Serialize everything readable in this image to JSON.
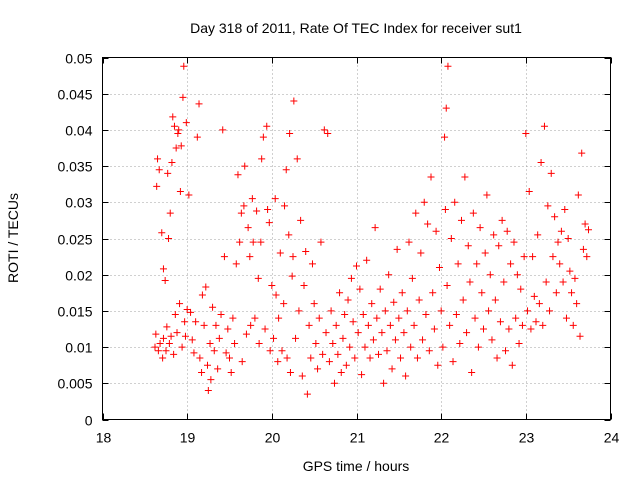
{
  "chart_data": {
    "type": "scatter",
    "title": "Day 318 of 2011, Rate Of TEC Index for receiver sut1",
    "xlabel": "GPS time / hours",
    "ylabel": "ROTI / TECUs",
    "xlim": [
      18,
      24
    ],
    "ylim": [
      0,
      0.05
    ],
    "xticks": [
      "18",
      "19",
      "20",
      "21",
      "22",
      "23",
      "24"
    ],
    "yticks": [
      "0",
      "0.005",
      "0.01",
      "0.015",
      "0.02",
      "0.025",
      "0.03",
      "0.035",
      "0.04",
      "0.045",
      "0.05"
    ],
    "grid": true,
    "marker": "+",
    "series": [
      {
        "name": "sut1",
        "color": "#ff0000",
        "points": [
          [
            18.62,
            0.01
          ],
          [
            18.63,
            0.0118
          ],
          [
            18.64,
            0.0322
          ],
          [
            18.65,
            0.036
          ],
          [
            18.66,
            0.0095
          ],
          [
            18.67,
            0.0345
          ],
          [
            18.68,
            0.0105
          ],
          [
            18.7,
            0.0258
          ],
          [
            18.71,
            0.0085
          ],
          [
            18.72,
            0.0208
          ],
          [
            18.72,
            0.0112
          ],
          [
            18.74,
            0.0192
          ],
          [
            18.75,
            0.0095
          ],
          [
            18.76,
            0.0128
          ],
          [
            18.77,
            0.034
          ],
          [
            18.78,
            0.025
          ],
          [
            18.79,
            0.0105
          ],
          [
            18.8,
            0.0285
          ],
          [
            18.81,
            0.0115
          ],
          [
            18.82,
            0.0355
          ],
          [
            18.83,
            0.0418
          ],
          [
            18.84,
            0.009
          ],
          [
            18.85,
            0.0405
          ],
          [
            18.86,
            0.0145
          ],
          [
            18.87,
            0.0375
          ],
          [
            18.88,
            0.012
          ],
          [
            18.89,
            0.0395
          ],
          [
            18.9,
            0.04
          ],
          [
            18.91,
            0.016
          ],
          [
            18.92,
            0.0315
          ],
          [
            18.93,
            0.0378
          ],
          [
            18.94,
            0.01
          ],
          [
            18.95,
            0.0445
          ],
          [
            18.96,
            0.0488
          ],
          [
            18.97,
            0.0135
          ],
          [
            18.98,
            0.0115
          ],
          [
            18.99,
            0.041
          ],
          [
            19.0,
            0.0152
          ],
          [
            19.02,
            0.031
          ],
          [
            19.04,
            0.0148
          ],
          [
            19.06,
            0.011
          ],
          [
            19.08,
            0.0092
          ],
          [
            19.1,
            0.0135
          ],
          [
            19.12,
            0.039
          ],
          [
            19.14,
            0.0436
          ],
          [
            19.15,
            0.0085
          ],
          [
            19.17,
            0.0065
          ],
          [
            19.18,
            0.0172
          ],
          [
            19.2,
            0.013
          ],
          [
            19.22,
            0.0183
          ],
          [
            19.24,
            0.0075
          ],
          [
            19.25,
            0.004
          ],
          [
            19.27,
            0.0105
          ],
          [
            19.28,
            0.0055
          ],
          [
            19.3,
            0.0155
          ],
          [
            19.32,
            0.0095
          ],
          [
            19.34,
            0.013
          ],
          [
            19.36,
            0.007
          ],
          [
            19.38,
            0.0112
          ],
          [
            19.4,
            0.0145
          ],
          [
            19.42,
            0.04
          ],
          [
            19.44,
            0.0225
          ],
          [
            19.46,
            0.0092
          ],
          [
            19.48,
            0.0125
          ],
          [
            19.5,
            0.0085
          ],
          [
            19.52,
            0.0065
          ],
          [
            19.54,
            0.014
          ],
          [
            19.56,
            0.0105
          ],
          [
            19.58,
            0.0215
          ],
          [
            19.6,
            0.0338
          ],
          [
            19.62,
            0.0245
          ],
          [
            19.64,
            0.0285
          ],
          [
            19.65,
            0.008
          ],
          [
            19.67,
            0.0295
          ],
          [
            19.68,
            0.035
          ],
          [
            19.7,
            0.0118
          ],
          [
            19.72,
            0.0265
          ],
          [
            19.74,
            0.0225
          ],
          [
            19.75,
            0.013
          ],
          [
            19.77,
            0.0305
          ],
          [
            19.78,
            0.0245
          ],
          [
            19.8,
            0.014
          ],
          [
            19.82,
            0.0288
          ],
          [
            19.84,
            0.0195
          ],
          [
            19.85,
            0.0105
          ],
          [
            19.87,
            0.0245
          ],
          [
            19.88,
            0.036
          ],
          [
            19.9,
            0.039
          ],
          [
            19.92,
            0.0125
          ],
          [
            19.94,
            0.0405
          ],
          [
            19.95,
            0.029
          ],
          [
            19.97,
            0.0272
          ],
          [
            19.98,
            0.0095
          ],
          [
            20.0,
            0.0185
          ],
          [
            20.02,
            0.0112
          ],
          [
            20.04,
            0.0305
          ],
          [
            20.05,
            0.0172
          ],
          [
            20.07,
            0.008
          ],
          [
            20.08,
            0.014
          ],
          [
            20.1,
            0.023
          ],
          [
            20.12,
            0.0095
          ],
          [
            20.14,
            0.016
          ],
          [
            20.15,
            0.0295
          ],
          [
            20.17,
            0.0345
          ],
          [
            20.18,
            0.0085
          ],
          [
            20.2,
            0.0255
          ],
          [
            20.21,
            0.0395
          ],
          [
            20.22,
            0.0065
          ],
          [
            20.24,
            0.0198
          ],
          [
            20.25,
            0.0225
          ],
          [
            20.26,
            0.044
          ],
          [
            20.28,
            0.0112
          ],
          [
            20.3,
            0.036
          ],
          [
            20.32,
            0.015
          ],
          [
            20.34,
            0.0275
          ],
          [
            20.36,
            0.006
          ],
          [
            20.38,
            0.0185
          ],
          [
            20.4,
            0.0232
          ],
          [
            20.42,
            0.0035
          ],
          [
            20.44,
            0.013
          ],
          [
            20.46,
            0.0085
          ],
          [
            20.48,
            0.0215
          ],
          [
            20.5,
            0.016
          ],
          [
            20.52,
            0.0105
          ],
          [
            20.54,
            0.007
          ],
          [
            20.56,
            0.014
          ],
          [
            20.58,
            0.0245
          ],
          [
            20.6,
            0.009
          ],
          [
            20.62,
            0.04
          ],
          [
            20.64,
            0.012
          ],
          [
            20.66,
            0.0395
          ],
          [
            20.68,
            0.008
          ],
          [
            20.7,
            0.015
          ],
          [
            20.72,
            0.0105
          ],
          [
            20.74,
            0.005
          ],
          [
            20.76,
            0.013
          ],
          [
            20.78,
            0.009
          ],
          [
            20.8,
            0.0175
          ],
          [
            20.82,
            0.0065
          ],
          [
            20.84,
            0.0112
          ],
          [
            20.86,
            0.0145
          ],
          [
            20.88,
            0.0075
          ],
          [
            20.9,
            0.0165
          ],
          [
            20.92,
            0.01
          ],
          [
            20.94,
            0.0195
          ],
          [
            20.96,
            0.0135
          ],
          [
            20.98,
            0.0085
          ],
          [
            21.0,
            0.0212
          ],
          [
            21.02,
            0.012
          ],
          [
            21.04,
            0.018
          ],
          [
            21.06,
            0.0062
          ],
          [
            21.08,
            0.0145
          ],
          [
            21.1,
            0.01
          ],
          [
            21.12,
            0.022
          ],
          [
            21.14,
            0.013
          ],
          [
            21.16,
            0.0085
          ],
          [
            21.18,
            0.016
          ],
          [
            21.2,
            0.011
          ],
          [
            21.22,
            0.0265
          ],
          [
            21.24,
            0.014
          ],
          [
            21.26,
            0.009
          ],
          [
            21.28,
            0.018
          ],
          [
            21.3,
            0.012
          ],
          [
            21.32,
            0.005
          ],
          [
            21.34,
            0.015
          ],
          [
            21.36,
            0.0095
          ],
          [
            21.38,
            0.02
          ],
          [
            21.4,
            0.013
          ],
          [
            21.42,
            0.007
          ],
          [
            21.44,
            0.0162
          ],
          [
            21.46,
            0.011
          ],
          [
            21.48,
            0.0235
          ],
          [
            21.5,
            0.014
          ],
          [
            21.52,
            0.0085
          ],
          [
            21.54,
            0.0175
          ],
          [
            21.56,
            0.012
          ],
          [
            21.58,
            0.006
          ],
          [
            21.6,
            0.015
          ],
          [
            21.62,
            0.0245
          ],
          [
            21.64,
            0.01
          ],
          [
            21.66,
            0.0195
          ],
          [
            21.68,
            0.013
          ],
          [
            21.7,
            0.0285
          ],
          [
            21.72,
            0.0085
          ],
          [
            21.74,
            0.0165
          ],
          [
            21.76,
            0.023
          ],
          [
            21.78,
            0.011
          ],
          [
            21.8,
            0.03
          ],
          [
            21.82,
            0.0145
          ],
          [
            21.84,
            0.027
          ],
          [
            21.86,
            0.0095
          ],
          [
            21.88,
            0.0335
          ],
          [
            21.9,
            0.0175
          ],
          [
            21.92,
            0.0125
          ],
          [
            21.94,
            0.026
          ],
          [
            21.96,
            0.0075
          ],
          [
            21.98,
            0.021
          ],
          [
            22.0,
            0.015
          ],
          [
            22.02,
            0.01
          ],
          [
            22.04,
            0.039
          ],
          [
            22.05,
            0.029
          ],
          [
            22.06,
            0.043
          ],
          [
            22.07,
            0.0185
          ],
          [
            22.08,
            0.0488
          ],
          [
            22.1,
            0.013
          ],
          [
            22.12,
            0.025
          ],
          [
            22.14,
            0.008
          ],
          [
            22.16,
            0.03
          ],
          [
            22.18,
            0.0145
          ],
          [
            22.2,
            0.0215
          ],
          [
            22.22,
            0.0105
          ],
          [
            22.24,
            0.0275
          ],
          [
            22.26,
            0.0165
          ],
          [
            22.28,
            0.0335
          ],
          [
            22.3,
            0.012
          ],
          [
            22.32,
            0.024
          ],
          [
            22.34,
            0.019
          ],
          [
            22.36,
            0.0065
          ],
          [
            22.38,
            0.0285
          ],
          [
            22.4,
            0.014
          ],
          [
            22.42,
            0.0215
          ],
          [
            22.44,
            0.01
          ],
          [
            22.46,
            0.0265
          ],
          [
            22.48,
            0.0175
          ],
          [
            22.5,
            0.0125
          ],
          [
            22.52,
            0.023
          ],
          [
            22.54,
            0.031
          ],
          [
            22.56,
            0.015
          ],
          [
            22.58,
            0.02
          ],
          [
            22.6,
            0.011
          ],
          [
            22.62,
            0.0255
          ],
          [
            22.64,
            0.0165
          ],
          [
            22.66,
            0.0085
          ],
          [
            22.68,
            0.024
          ],
          [
            22.7,
            0.0135
          ],
          [
            22.72,
            0.0275
          ],
          [
            22.74,
            0.019
          ],
          [
            22.76,
            0.0095
          ],
          [
            22.78,
            0.026
          ],
          [
            22.8,
            0.0125
          ],
          [
            22.82,
            0.0215
          ],
          [
            22.84,
            0.0075
          ],
          [
            22.86,
            0.0245
          ],
          [
            22.88,
            0.014
          ],
          [
            22.9,
            0.02
          ],
          [
            22.92,
            0.0105
          ],
          [
            22.94,
            0.018
          ],
          [
            22.96,
            0.013
          ],
          [
            22.98,
            0.0225
          ],
          [
            23.0,
            0.0395
          ],
          [
            23.02,
            0.015
          ],
          [
            23.04,
            0.0315
          ],
          [
            23.06,
            0.0125
          ],
          [
            23.08,
            0.0225
          ],
          [
            23.1,
            0.017
          ],
          [
            23.12,
            0.0135
          ],
          [
            23.14,
            0.0255
          ],
          [
            23.16,
            0.016
          ],
          [
            23.18,
            0.0355
          ],
          [
            23.2,
            0.013
          ],
          [
            23.22,
            0.0405
          ],
          [
            23.24,
            0.019
          ],
          [
            23.26,
            0.0295
          ],
          [
            23.28,
            0.015
          ],
          [
            23.3,
            0.034
          ],
          [
            23.32,
            0.0225
          ],
          [
            23.34,
            0.028
          ],
          [
            23.36,
            0.0175
          ],
          [
            23.38,
            0.0245
          ],
          [
            23.4,
            0.0215
          ],
          [
            23.42,
            0.026
          ],
          [
            23.44,
            0.019
          ],
          [
            23.46,
            0.029
          ],
          [
            23.48,
            0.014
          ],
          [
            23.5,
            0.025
          ],
          [
            23.52,
            0.0205
          ],
          [
            23.54,
            0.0175
          ],
          [
            23.56,
            0.013
          ],
          [
            23.58,
            0.0195
          ],
          [
            23.6,
            0.016
          ],
          [
            23.62,
            0.031
          ],
          [
            23.64,
            0.0115
          ],
          [
            23.66,
            0.0368
          ],
          [
            23.68,
            0.0235
          ],
          [
            23.7,
            0.027
          ],
          [
            23.72,
            0.0225
          ],
          [
            23.74,
            0.0262
          ]
        ]
      }
    ]
  }
}
